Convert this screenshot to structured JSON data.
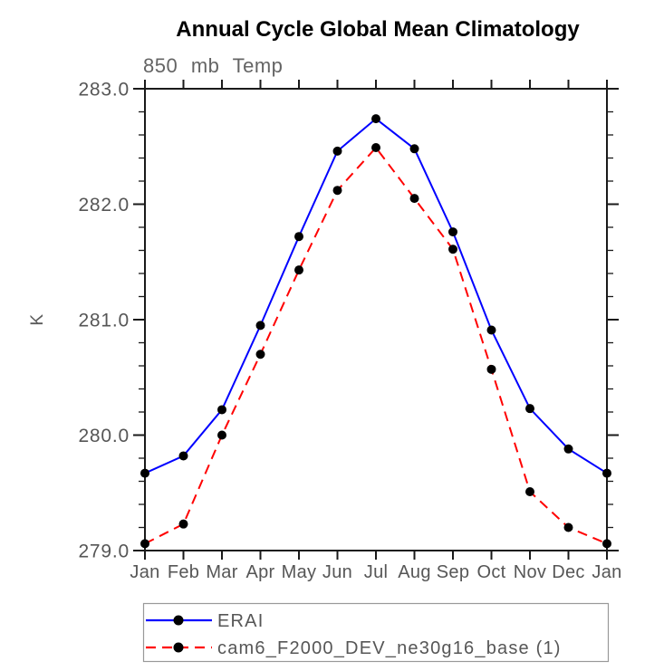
{
  "chart_data": {
    "type": "line",
    "title": "Annual Cycle Global Mean Climatology",
    "subtitle": "850 mb Temp",
    "ylabel": "K",
    "xlabel": "",
    "categories": [
      "Jan",
      "Feb",
      "Mar",
      "Apr",
      "May",
      "Jun",
      "Jul",
      "Aug",
      "Sep",
      "Oct",
      "Nov",
      "Dec",
      "Jan"
    ],
    "series": [
      {
        "name": "ERAI",
        "color": "#0000ff",
        "line_style": "solid",
        "values": [
          279.67,
          279.82,
          280.22,
          280.95,
          281.72,
          282.46,
          282.74,
          282.48,
          281.76,
          280.91,
          280.23,
          279.88,
          279.67
        ]
      },
      {
        "name": "cam6_F2000_DEV_ne30g16_base (1)",
        "color": "#ff0000",
        "line_style": "dashed",
        "values": [
          279.06,
          279.23,
          280.0,
          280.7,
          281.43,
          282.12,
          282.49,
          282.05,
          281.61,
          280.57,
          279.51,
          279.2,
          279.06
        ]
      }
    ],
    "ylim": [
      279.0,
      283.0
    ],
    "ytick_step": 1.0,
    "yminor_step": 0.2,
    "ytick_labels": [
      "279.0",
      "280.0",
      "281.0",
      "282.0",
      "283.0"
    ],
    "marker": {
      "shape": "circle",
      "color": "#000000"
    },
    "legend_position": "bottom-left",
    "grid": false
  },
  "colors": {
    "background": "#ffffff",
    "axis": "#1a1a1a",
    "tick_label_text": "#565656",
    "subtitle_text": "#646464",
    "legend_border": "#999999",
    "series_blue": "#0000ff",
    "series_red": "#ff0000",
    "marker_black": "#000000"
  }
}
